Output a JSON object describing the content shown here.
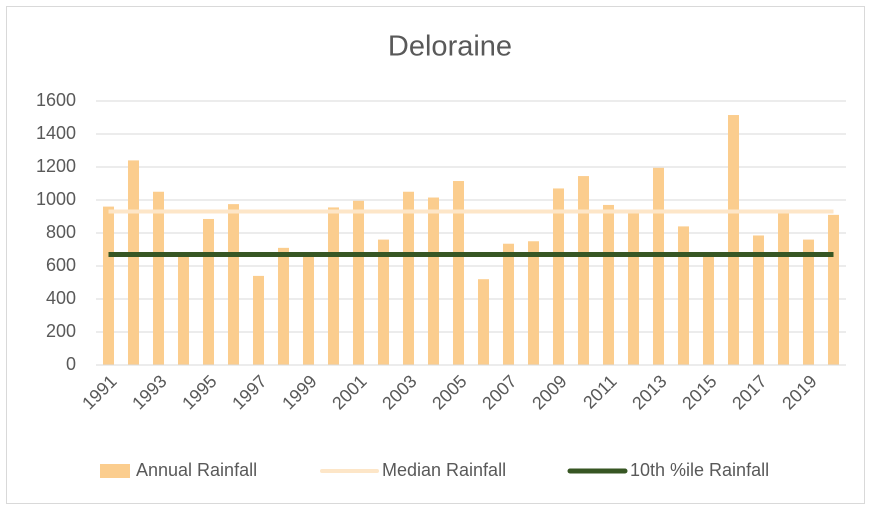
{
  "chart_data": {
    "type": "bar",
    "title": "Deloraine",
    "categories": [
      "1991",
      null,
      "1993",
      null,
      "1995",
      null,
      "1997",
      null,
      "1999",
      null,
      "2001",
      null,
      "2003",
      null,
      "2005",
      null,
      "2007",
      null,
      "2009",
      null,
      "2011",
      null,
      "2013",
      null,
      "2015",
      null,
      "2017",
      null,
      "2019",
      null
    ],
    "series": [
      {
        "name": "Annual Rainfall",
        "type": "bar",
        "color": "#fbcd8e",
        "values": [
          960,
          1240,
          1050,
          660,
          885,
          975,
          540,
          710,
          660,
          955,
          995,
          760,
          1050,
          1015,
          1115,
          520,
          735,
          750,
          1070,
          1145,
          970,
          920,
          1195,
          840,
          665,
          1515,
          785,
          920,
          760,
          910
        ]
      },
      {
        "name": "Median Rainfall",
        "type": "line",
        "color": "#fde6c8",
        "values": [
          930,
          930,
          930,
          930,
          930,
          930,
          930,
          930,
          930,
          930,
          930,
          930,
          930,
          930,
          930,
          930,
          930,
          930,
          930,
          930,
          930,
          930,
          930,
          930,
          930,
          930,
          930,
          930,
          930,
          930
        ]
      },
      {
        "name": "10th %ile Rainfall",
        "type": "line",
        "color": "#375623",
        "values": [
          670,
          670,
          670,
          670,
          670,
          670,
          670,
          670,
          670,
          670,
          670,
          670,
          670,
          670,
          670,
          670,
          670,
          670,
          670,
          670,
          670,
          670,
          670,
          670,
          670,
          670,
          670,
          670,
          670,
          670
        ]
      }
    ],
    "ylim": [
      0,
      1600
    ],
    "yticks": [
      0,
      200,
      400,
      600,
      800,
      1000,
      1200,
      1400,
      1600
    ],
    "grid": true,
    "legend": "bottom"
  }
}
